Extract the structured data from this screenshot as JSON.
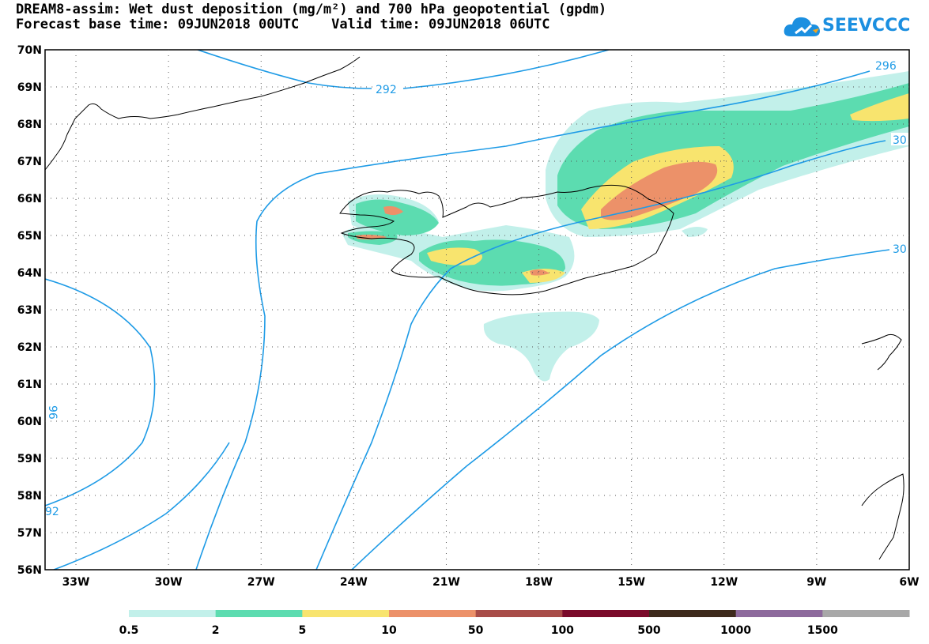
{
  "title": {
    "line1": "DREAM8-assim: Wet dust deposition (mg/m²) and 700 hPa geopotential (gpdm)",
    "line2": "Forecast base time: 09JUN2018 00UTC    Valid time: 09JUN2018 06UTC"
  },
  "logo": {
    "text": "SEEVCCC",
    "color": "#1b8fe0"
  },
  "map": {
    "lat_labels": [
      "70N",
      "69N",
      "68N",
      "67N",
      "66N",
      "65N",
      "64N",
      "63N",
      "62N",
      "61N",
      "60N",
      "59N",
      "58N",
      "57N",
      "56N"
    ],
    "lon_labels": [
      "33W",
      "30W",
      "27W",
      "24W",
      "21W",
      "18W",
      "15W",
      "12W",
      "9W",
      "6W"
    ],
    "contour_labels": [
      "292",
      "296",
      "30",
      "30",
      "92",
      "96"
    ],
    "contour_color": "#1e9be6",
    "coast_color": "#000000"
  },
  "legend": {
    "labels": [
      "0.5",
      "2",
      "5",
      "10",
      "50",
      "100",
      "500",
      "1000",
      "1500"
    ],
    "colors": [
      "#c2f0ea",
      "#5cdcb0",
      "#f8e46e",
      "#ec9169",
      "#a84c48",
      "#7a0a2a",
      "#3d2a1c",
      "#8d6a9c",
      "#a8a8a8"
    ]
  }
}
